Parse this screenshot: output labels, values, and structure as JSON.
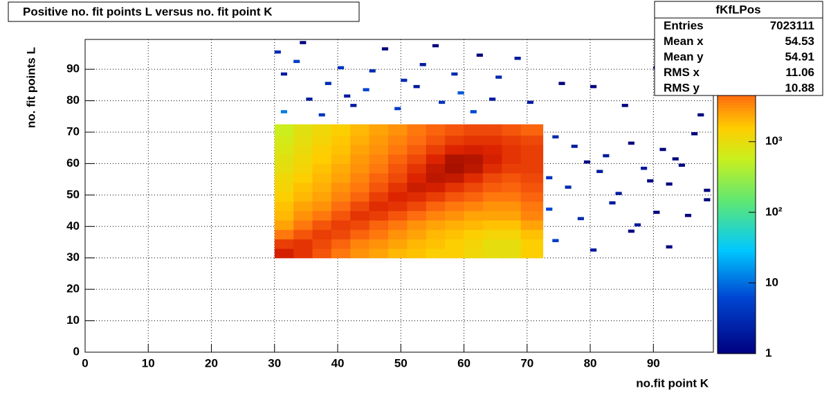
{
  "chart_data": {
    "type": "heatmap",
    "title": "Positive no. fit points L versus no. fit point K",
    "x_label": "no.fit point K",
    "y_label": "no. fit points  L",
    "xlim": [
      0,
      99.5
    ],
    "ylim": [
      0,
      99.5
    ],
    "xticks": [
      0,
      10,
      20,
      30,
      40,
      50,
      60,
      70,
      80,
      90
    ],
    "yticks": [
      0,
      10,
      20,
      30,
      40,
      50,
      60,
      70,
      80,
      90
    ],
    "grid": true,
    "zlim": [
      1,
      28000
    ],
    "log_z": true,
    "zticks": [
      1,
      10,
      {
        "value": 100,
        "label": "10²"
      },
      {
        "value": 1000,
        "label": "10³"
      }
    ],
    "x_edges": [
      30,
      33,
      36,
      39,
      42,
      45,
      48,
      51,
      54,
      57,
      60,
      63,
      66,
      69,
      72.5
    ],
    "y_edges": [
      30,
      33,
      36,
      39,
      42,
      45,
      48,
      51,
      54,
      57,
      60,
      63,
      66,
      69,
      72.5
    ],
    "z": [
      [
        12000,
        9000,
        6000,
        4000,
        3000,
        2500,
        2000,
        1800,
        1500,
        1500,
        1200,
        1000,
        1000,
        1500
      ],
      [
        8000,
        9000,
        7000,
        5000,
        3500,
        3000,
        2500,
        2000,
        1800,
        1500,
        1300,
        1000,
        1000,
        1500
      ],
      [
        4000,
        6000,
        8000,
        7000,
        5000,
        4000,
        3000,
        2500,
        2000,
        1800,
        1500,
        1300,
        1300,
        1800
      ],
      [
        2500,
        4000,
        6000,
        8000,
        7000,
        5000,
        4000,
        3000,
        2500,
        2200,
        2000,
        1800,
        1800,
        2500
      ],
      [
        2000,
        3000,
        4000,
        6000,
        9000,
        8000,
        6000,
        4500,
        3500,
        3000,
        2500,
        2500,
        2500,
        3500
      ],
      [
        1800,
        2500,
        3000,
        4500,
        7000,
        10000,
        9000,
        7000,
        5000,
        4000,
        3500,
        3000,
        3000,
        4000
      ],
      [
        1500,
        2000,
        2500,
        3500,
        5000,
        8000,
        11000,
        10000,
        8000,
        6000,
        5000,
        4000,
        4000,
        5000
      ],
      [
        1300,
        1800,
        2200,
        3000,
        4000,
        6000,
        9000,
        13000,
        12000,
        9000,
        7000,
        5500,
        5000,
        6000
      ],
      [
        1200,
        1500,
        2000,
        2500,
        3500,
        5000,
        7000,
        11000,
        15000,
        14000,
        10000,
        7000,
        6000,
        7000
      ],
      [
        1000,
        1300,
        1800,
        2300,
        3000,
        4000,
        6000,
        9000,
        14000,
        18000,
        15000,
        10000,
        8000,
        8000
      ],
      [
        900,
        1200,
        1600,
        2000,
        2800,
        3500,
        5000,
        7000,
        11000,
        17000,
        16000,
        12000,
        9000,
        8000
      ],
      [
        800,
        1100,
        1500,
        1800,
        2500,
        3000,
        4000,
        5500,
        8000,
        11000,
        12000,
        11000,
        9000,
        8000
      ],
      [
        700,
        1000,
        1300,
        1700,
        2200,
        2800,
        3500,
        4500,
        6000,
        8000,
        9000,
        9000,
        8000,
        7000
      ],
      [
        600,
        900,
        1200,
        1500,
        2000,
        2500,
        3000,
        4000,
        5000,
        6000,
        7000,
        7000,
        6000,
        5000
      ]
    ],
    "sparse": {
      "x": [
        30,
        31,
        33,
        35,
        38,
        40,
        42,
        44,
        47,
        50,
        53,
        56,
        59,
        62,
        65,
        68,
        31,
        34,
        37,
        41,
        45,
        49,
        52,
        55,
        58,
        61,
        64,
        70,
        75,
        80,
        85,
        90,
        95,
        97,
        74,
        77,
        79,
        82,
        86,
        88,
        91,
        93,
        96,
        73,
        76,
        81,
        84,
        89,
        92,
        94,
        98,
        73,
        78,
        83,
        87,
        90,
        95,
        98,
        74,
        80,
        86,
        92
      ],
      "y": [
        95,
        88,
        92,
        80,
        85,
        90,
        78,
        83,
        96,
        86,
        91,
        79,
        82,
        94,
        87,
        93,
        76,
        98,
        75,
        81,
        89,
        77,
        84,
        97,
        88,
        76,
        80,
        79,
        85,
        84,
        78,
        90,
        82,
        75,
        68,
        65,
        60,
        62,
        66,
        58,
        64,
        61,
        69,
        55,
        52,
        57,
        50,
        54,
        53,
        59,
        51,
        45,
        42,
        47,
        40,
        44,
        43,
        48,
        35,
        32,
        38,
        33
      ],
      "values": [
        3,
        2,
        5,
        2,
        3,
        4,
        2,
        6,
        1,
        3,
        2,
        4,
        8,
        1,
        3,
        2,
        12,
        1,
        4,
        2,
        3,
        5,
        2,
        1,
        3,
        6,
        2,
        2,
        1,
        1,
        1,
        1,
        1,
        1,
        3,
        2,
        1,
        2,
        1,
        2,
        1,
        1,
        1,
        4,
        3,
        2,
        2,
        1,
        1,
        1,
        1,
        6,
        3,
        2,
        2,
        1,
        1,
        1,
        5,
        2,
        1,
        1
      ]
    },
    "stats": {
      "title": "fKfLPos",
      "rows": [
        [
          "Entries",
          "7023111"
        ],
        [
          "Mean x",
          "54.53"
        ],
        [
          "Mean y",
          "54.91"
        ],
        [
          "RMS x",
          "11.06"
        ],
        [
          "RMS y",
          "10.88"
        ]
      ]
    }
  }
}
